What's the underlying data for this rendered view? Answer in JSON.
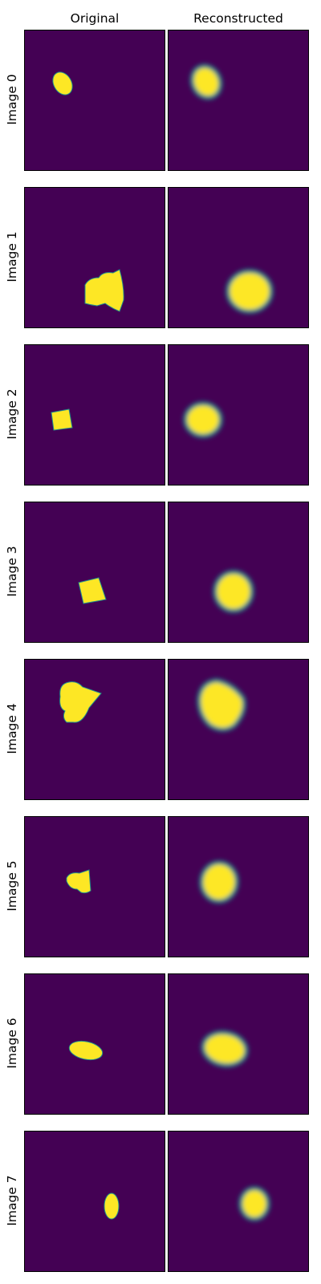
{
  "column_headers": [
    "Original",
    "Reconstructed"
  ],
  "colors": {
    "background": "#440154",
    "shape": "#fde725",
    "edge": "#21918c"
  },
  "rows": [
    {
      "label": "Image 0"
    },
    {
      "label": "Image 1"
    },
    {
      "label": "Image 2"
    },
    {
      "label": "Image 3"
    },
    {
      "label": "Image 4"
    },
    {
      "label": "Image 5"
    },
    {
      "label": "Image 6"
    },
    {
      "label": "Image 7"
    }
  ]
}
